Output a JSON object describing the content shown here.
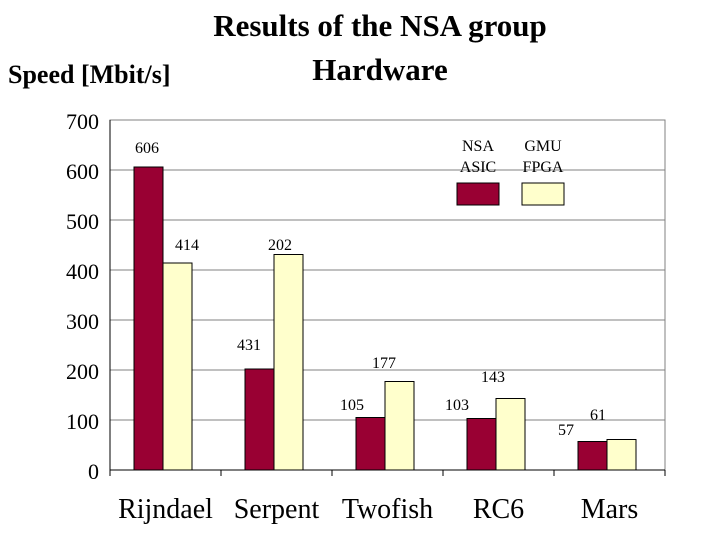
{
  "chart_data": {
    "type": "bar",
    "title": "Results of the NSA group Hardware",
    "title_lines": [
      "Results of the NSA group",
      "Hardware"
    ],
    "ylabel": "Speed [Mbit/s]",
    "xlabel": "",
    "ylim": [
      0,
      700
    ],
    "yticks": [
      0,
      100,
      200,
      300,
      400,
      500,
      600,
      700
    ],
    "categories": [
      "Rijndael",
      "Serpent",
      "Twofish",
      "RC6",
      "Mars"
    ],
    "series": [
      {
        "name": "NSA ASIC",
        "legend_lines": [
          "NSA",
          "ASIC"
        ],
        "color": "#990033",
        "values": [
          606,
          202,
          105,
          103,
          57
        ]
      },
      {
        "name": "GMU FPGA",
        "legend_lines": [
          "GMU",
          "FPGA"
        ],
        "color": "#ffffcc",
        "values": [
          414,
          431,
          177,
          143,
          61
        ]
      }
    ],
    "grid": true,
    "legend_position": "top-right"
  }
}
